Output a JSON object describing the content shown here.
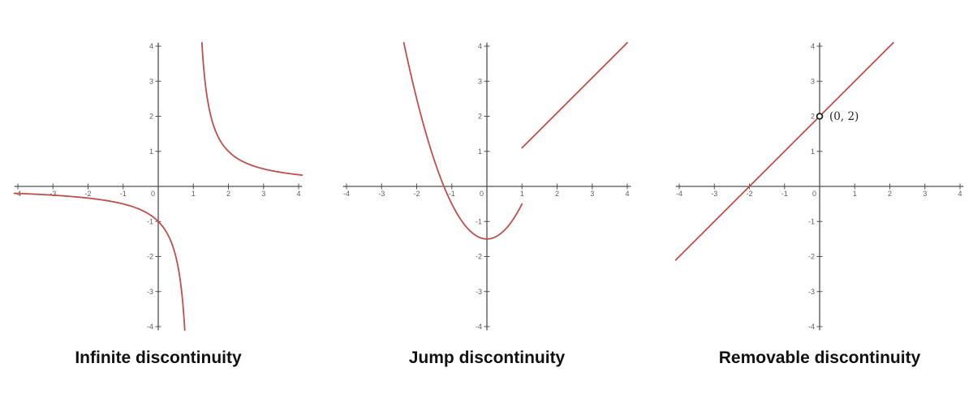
{
  "style": {
    "background": "#ffffff",
    "curve_color": "#bf4f4a",
    "axis_color": "#4f4f4f",
    "tick_label_color": "#5f5f5f",
    "title_color": "#111111",
    "hole_fill": "#ffffff",
    "hole_stroke": "#1a1a1a"
  },
  "chart_data": [
    {
      "type": "line",
      "title": "Infinite discontinuity",
      "function": "f(x) = 1/(x-1)",
      "discontinuity": {
        "kind": "infinite",
        "at_x": 1,
        "vertical_asymptote_x": 1,
        "horizontal_asymptote_y": 0
      },
      "x_range": [
        -4.1,
        4.1
      ],
      "y_range": [
        -4.1,
        4.1
      ],
      "x_ticks": [
        -4,
        -3,
        -2,
        -1,
        0,
        1,
        2,
        3,
        4
      ],
      "y_ticks": [
        -4,
        -3,
        -2,
        -1,
        1,
        2,
        3,
        4
      ],
      "grid": false,
      "legend": false,
      "segments": [
        {
          "expr": "1/(x-1)",
          "x_start": -4.1,
          "x_end": 0.7561
        },
        {
          "expr": "1/(x-1)",
          "x_start": 1.2439,
          "x_end": 4.1
        }
      ],
      "key_points": [
        {
          "x": 0,
          "y": -1
        }
      ]
    },
    {
      "type": "line",
      "title": "Jump discontinuity",
      "function": "f(x) = x^2 - 1.5 for x < 1;  f(x) = x + 0.1 for x >= 1",
      "discontinuity": {
        "kind": "jump",
        "at_x": 1,
        "left_limit": -0.5,
        "right_limit": 1.1
      },
      "x_range": [
        -4.1,
        4.1
      ],
      "y_range": [
        -4.1,
        4.1
      ],
      "x_ticks": [
        -4,
        -3,
        -2,
        -1,
        0,
        1,
        2,
        3,
        4
      ],
      "y_ticks": [
        -4,
        -3,
        -2,
        -1,
        1,
        2,
        3,
        4
      ],
      "grid": false,
      "legend": false,
      "segments": [
        {
          "expr": "x*x - 1.5",
          "x_start": -2.3664,
          "x_end": 1.0
        },
        {
          "expr": "x + 0.1",
          "x_start": 1.0,
          "x_end": 4.0
        }
      ],
      "key_points": [
        {
          "x": 0,
          "y": -1.5
        },
        {
          "x": 1,
          "y": -0.5
        },
        {
          "x": 1,
          "y": 1.1
        }
      ]
    },
    {
      "type": "line",
      "title": "Removable discontinuity",
      "function": "f(x) = x + 2, x != 0",
      "discontinuity": {
        "kind": "removable",
        "at_x": 0
      },
      "x_range": [
        -4.1,
        4.1
      ],
      "y_range": [
        -4.1,
        4.1
      ],
      "x_ticks": [
        -4,
        -3,
        -2,
        -1,
        0,
        1,
        2,
        3,
        4
      ],
      "y_ticks": [
        -4,
        -3,
        -2,
        -1,
        1,
        2,
        3,
        4
      ],
      "grid": false,
      "legend": false,
      "segments": [
        {
          "expr": "x + 2",
          "x_start": -4.1,
          "x_end": 2.1
        }
      ],
      "hole": {
        "x": 0,
        "y": 2,
        "label": "(0, 2)"
      },
      "key_points": [
        {
          "x": -2,
          "y": 0
        },
        {
          "x": 0,
          "y": 2
        }
      ]
    }
  ]
}
